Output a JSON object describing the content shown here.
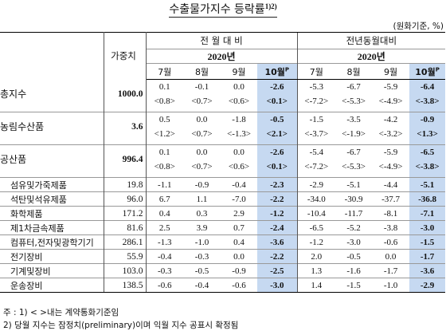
{
  "title": "수출물가지수 등락률",
  "title_sup": "1)2)",
  "unit": "(원화기준, %)",
  "header": {
    "weight": "가중치",
    "mom_group": "전 월 대 비",
    "yoy_group": "전년동월대비",
    "year": "2020년",
    "months": [
      "7월",
      "8월",
      "9월",
      "10월"
    ],
    "prelim_mark": "P"
  },
  "rows": [
    {
      "label": "총지수",
      "weight": "1000.0",
      "mom": [
        "0.1",
        "-0.1",
        "0.0",
        "-2.6"
      ],
      "mom_c": [
        "<0.8>",
        "<0.7>",
        "<0.6>",
        "<0.1>"
      ],
      "yoy": [
        "-5.3",
        "-6.7",
        "-5.9",
        "-6.4"
      ],
      "yoy_c": [
        "<-7.2>",
        "<-5.3>",
        "<-4.9>",
        "<-3.8>"
      ]
    },
    {
      "label": "농림수산품",
      "weight": "3.6",
      "mom": [
        "0.5",
        "0.0",
        "-1.8",
        "-0.5"
      ],
      "mom_c": [
        "<1.2>",
        "<0.7>",
        "<-1.3>",
        "<2.1>"
      ],
      "yoy": [
        "-1.5",
        "-3.5",
        "-4.2",
        "-0.9"
      ],
      "yoy_c": [
        "<-3.7>",
        "<-1.9>",
        "<-3.2>",
        "<1.3>"
      ]
    },
    {
      "label": "공산품",
      "weight": "996.4",
      "mom": [
        "0.1",
        "0.0",
        "0.0",
        "-2.6"
      ],
      "mom_c": [
        "<0.8>",
        "<0.7>",
        "<0.6>",
        "<0.1>"
      ],
      "yoy": [
        "-5.4",
        "-6.7",
        "-5.9",
        "-6.5"
      ],
      "yoy_c": [
        "<-7.2>",
        "<-5.3>",
        "<-4.9>",
        "<-3.8>"
      ]
    }
  ],
  "subrows": [
    {
      "label": "섬유및가죽제품",
      "weight": "19.8",
      "mom": [
        "-1.1",
        "-0.9",
        "-0.4",
        "-2.3"
      ],
      "yoy": [
        "-2.9",
        "-5.1",
        "-4.4",
        "-5.1"
      ]
    },
    {
      "label": "석탄및석유제품",
      "weight": "96.0",
      "mom": [
        "6.7",
        "1.1",
        "-7.0",
        "-2.2"
      ],
      "yoy": [
        "-34.0",
        "-30.9",
        "-37.7",
        "-36.8"
      ]
    },
    {
      "label": "화학제품",
      "weight": "171.2",
      "mom": [
        "0.4",
        "0.3",
        "2.9",
        "-1.2"
      ],
      "yoy": [
        "-10.4",
        "-11.7",
        "-8.1",
        "-7.1"
      ]
    },
    {
      "label": "제1차금속제품",
      "weight": "81.6",
      "mom": [
        "2.5",
        "3.9",
        "0.7",
        "-2.4"
      ],
      "yoy": [
        "-6.5",
        "-5.2",
        "-3.8",
        "-3.0"
      ]
    },
    {
      "label": "컴퓨터,전자및광학기기",
      "weight": "286.1",
      "mom": [
        "-1.3",
        "-1.0",
        "0.4",
        "-3.6"
      ],
      "yoy": [
        "-1.2",
        "-3.0",
        "-0.6",
        "-1.5"
      ]
    },
    {
      "label": "전기장비",
      "weight": "55.9",
      "mom": [
        "-0.4",
        "-0.3",
        "0.0",
        "-2.2"
      ],
      "yoy": [
        "2.0",
        "-0.5",
        "0.0",
        "-1.7"
      ]
    },
    {
      "label": "기계및장비",
      "weight": "103.0",
      "mom": [
        "-0.3",
        "-0.5",
        "-0.9",
        "-2.5"
      ],
      "yoy": [
        "1.3",
        "-1.6",
        "-1.7",
        "-3.6"
      ]
    },
    {
      "label": "운송장비",
      "weight": "138.5",
      "mom": [
        "-0.6",
        "-0.4",
        "-0.6",
        "-3.0"
      ],
      "yoy": [
        "1.4",
        "-1.5",
        "-1.0",
        "-2.9"
      ]
    }
  ],
  "notes": [
    "주 : 1) < >내는 계약통화기준임",
    "2) 당월 지수는 잠정치(preliminary)이며 익월 지수 공표시 확정됨"
  ]
}
